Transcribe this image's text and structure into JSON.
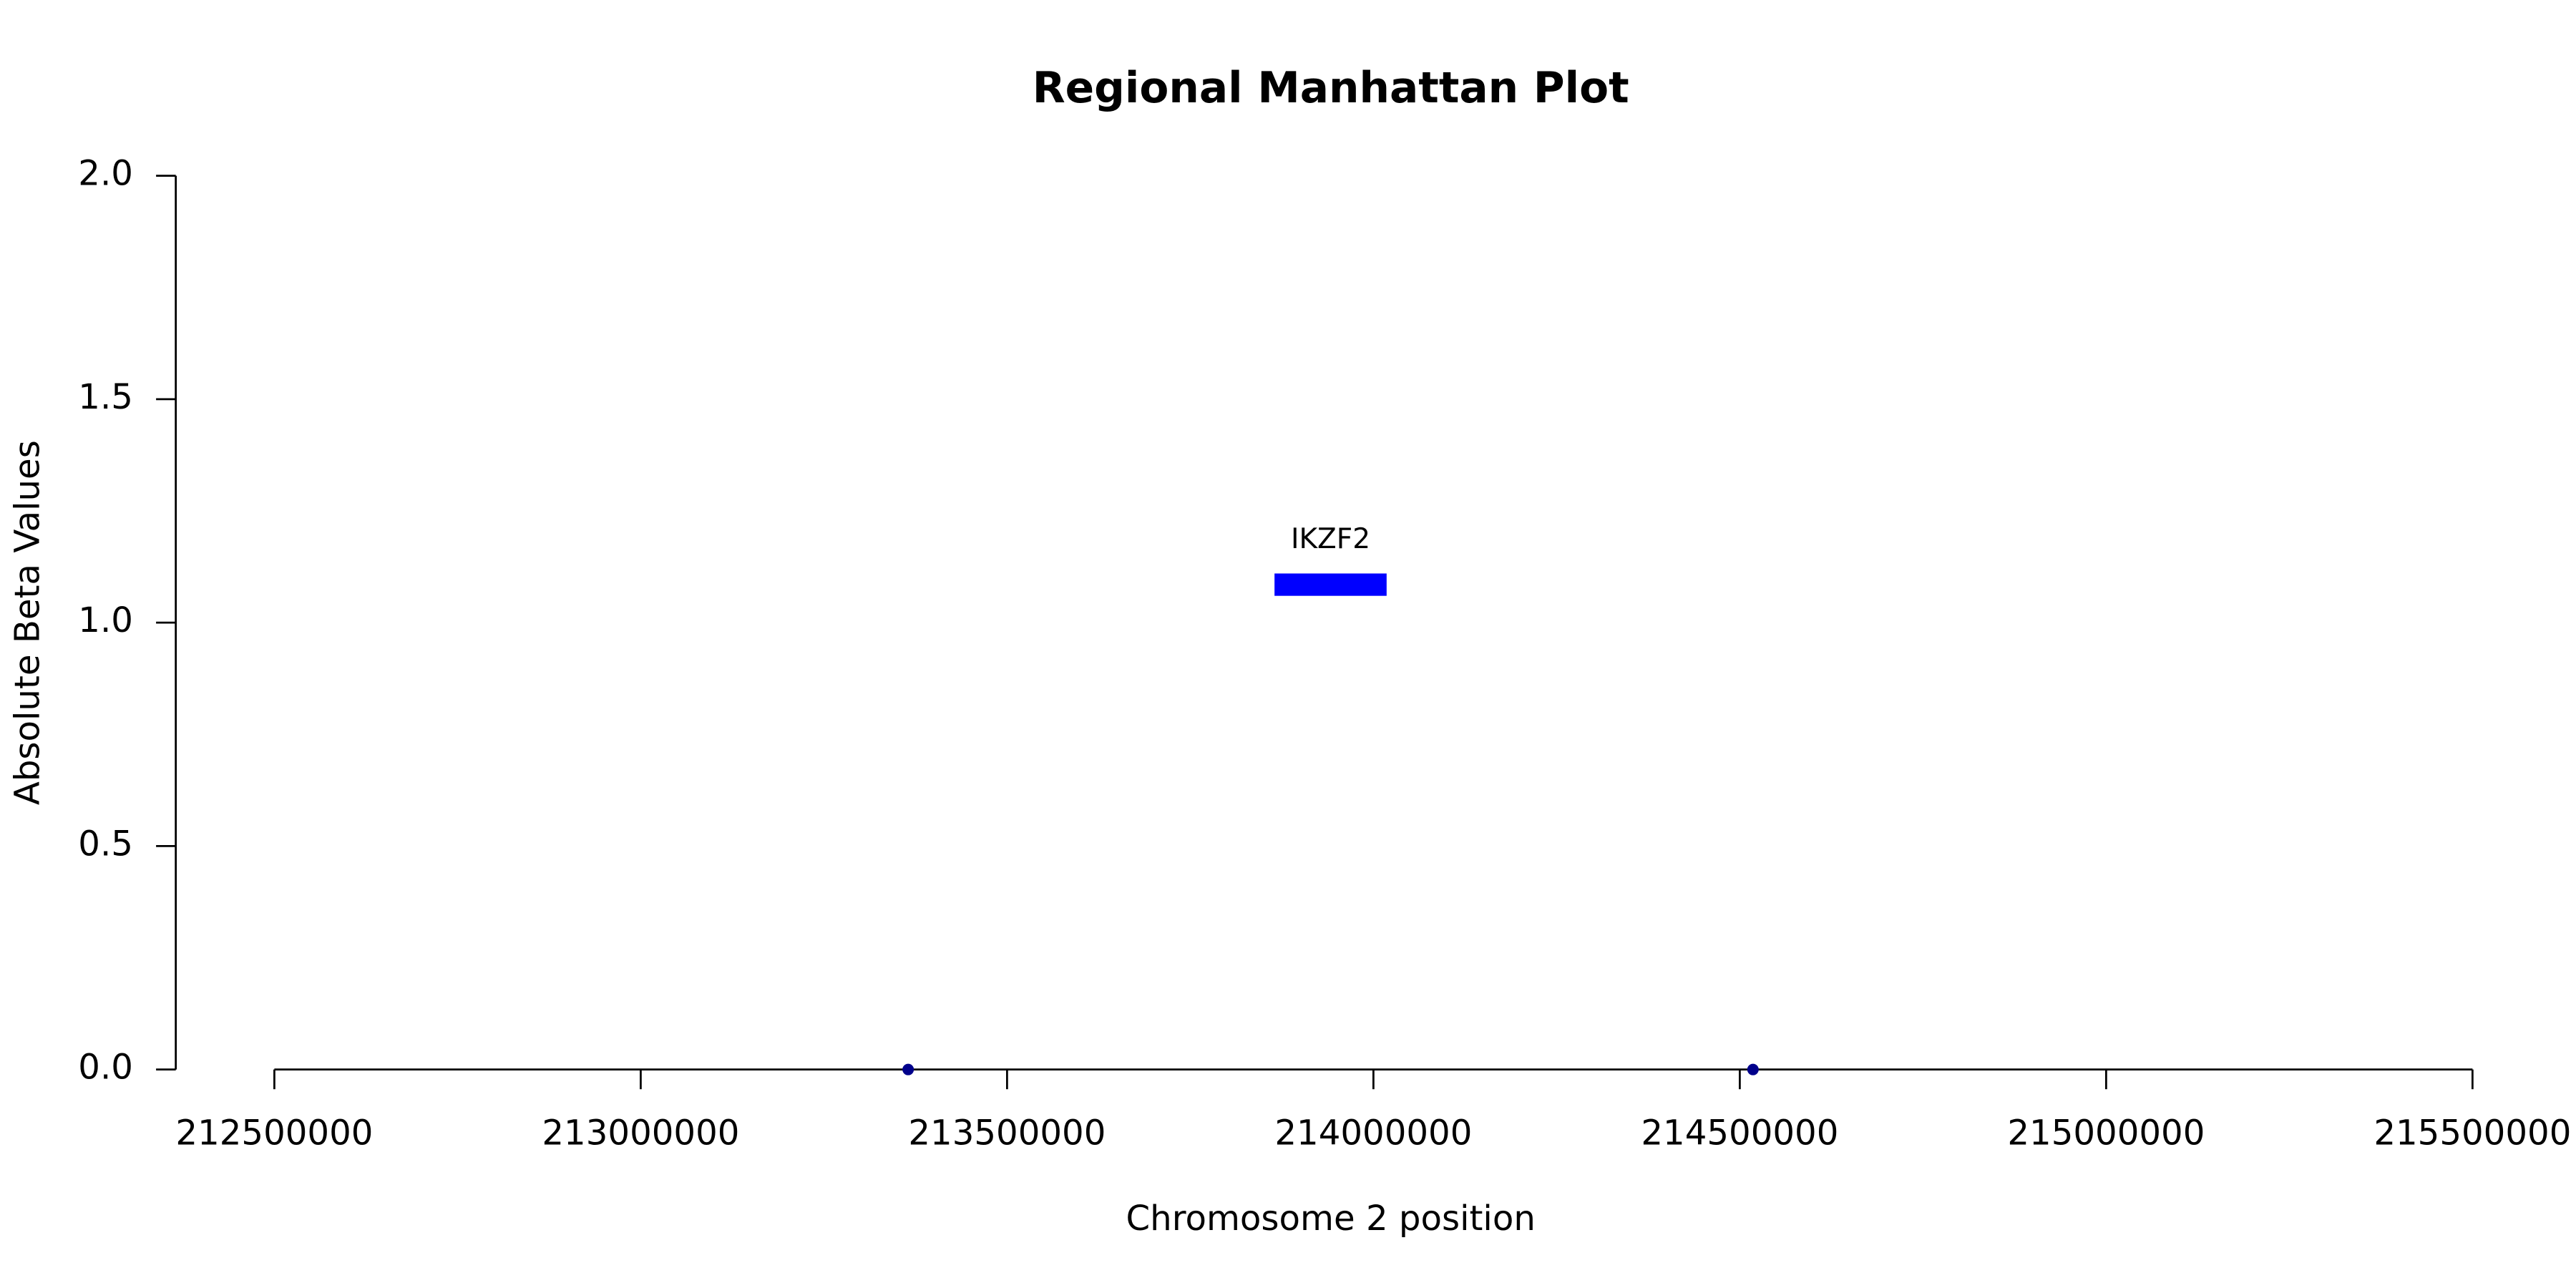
{
  "chart_data": {
    "type": "scatter",
    "title": "Regional Manhattan Plot",
    "x_label": "Chromosome 2 position",
    "y_label": "Absolute Beta Values",
    "x": [
      213365000,
      214518000
    ],
    "series": [
      {
        "color": "#00008b",
        "values": [
          0,
          0
        ]
      }
    ],
    "genes": [
      {
        "name": "IKZF2",
        "start": 213865000,
        "end": 214018000,
        "ymin": 1.06,
        "ymax": 1.11,
        "color": "#0000ff"
      }
    ],
    "xlim": [
      212500000,
      215500000
    ],
    "xticks": [
      212500000,
      213000000,
      213500000,
      214000000,
      214500000,
      215000000,
      215500000
    ],
    "ylim": [
      0,
      2
    ],
    "yticks": [
      {
        "value": 0,
        "label": "0.0"
      },
      {
        "value": 0.5,
        "label": "0.5"
      },
      {
        "value": 1,
        "label": "1.0"
      },
      {
        "value": 1.5,
        "label": "1.5"
      },
      {
        "value": 2,
        "label": "2.0"
      }
    ],
    "grid": false
  }
}
